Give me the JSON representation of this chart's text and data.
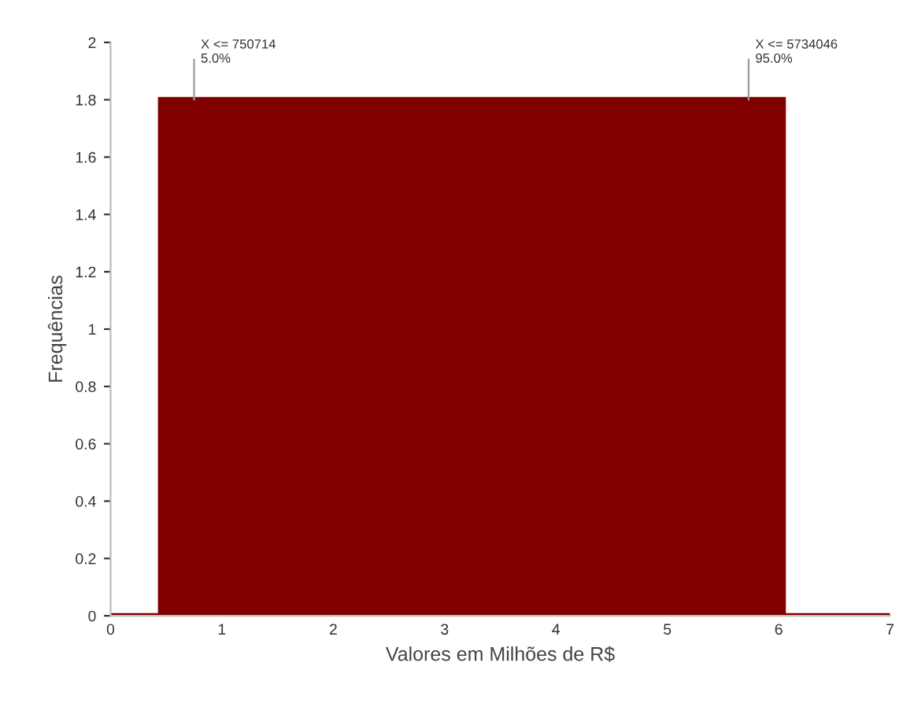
{
  "chart_data": {
    "type": "histogram",
    "xlabel": "Valores em Milhões de R$",
    "ylabel": "Frequências",
    "bins": [
      0,
      0.45,
      6.04,
      7
    ],
    "values": [
      0,
      1.8,
      0
    ],
    "color": "#800000",
    "xlim": [
      0,
      7
    ],
    "xticks": [
      0,
      1,
      2,
      3,
      4,
      5,
      6,
      7
    ],
    "ylim": [
      0,
      2
    ],
    "yticks": [
      0,
      0.2,
      0.4,
      0.6,
      0.8,
      1,
      1.2,
      1.4,
      1.6,
      1.8,
      2
    ],
    "annotations": [
      {
        "text": "X <= 750714\n5.0%",
        "x": 0.75,
        "y": 1.8
      },
      {
        "text": "X <= 5734046\n95.0%",
        "x": 5.73,
        "y": 1.8
      }
    ],
    "grid": false,
    "legend": false
  }
}
